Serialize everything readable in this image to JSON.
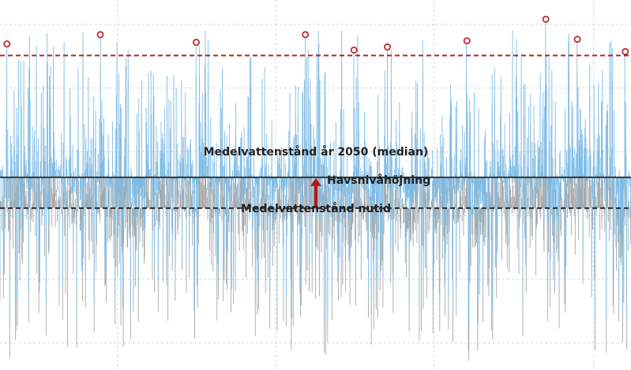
{
  "chart_data": {
    "type": "line",
    "title": "",
    "xlabel": "",
    "ylabel": "",
    "grid": true,
    "legend": "none",
    "ylim": [
      -1.05,
      1.35
    ],
    "series": [
      {
        "name": "",
        "role": "present",
        "color": "#a9a9a9",
        "values": []
      },
      {
        "name": "",
        "role": "future",
        "color": "#7dbde8",
        "values": []
      }
    ],
    "reference_lines": [
      {
        "label": "Medelvattenstånd år 2050 (median)",
        "value": 0.2,
        "style": "solid",
        "color": "#222222"
      },
      {
        "label": "Medelvattenstånd nutid",
        "value": 0.0,
        "style": "dashed",
        "color": "#222222"
      },
      {
        "label": "",
        "value": 0.99,
        "style": "dashed",
        "color": "#b22222"
      }
    ],
    "arrow": {
      "label": "Havsnivåhöjning",
      "from": 0.0,
      "to": 0.2,
      "color": "#b01818"
    },
    "exceedances": [
      {
        "x": 0.011,
        "value": 1.05
      },
      {
        "x": 0.159,
        "value": 1.11
      },
      {
        "x": 0.311,
        "value": 1.06
      },
      {
        "x": 0.484,
        "value": 1.11
      },
      {
        "x": 0.561,
        "value": 1.01
      },
      {
        "x": 0.614,
        "value": 1.03
      },
      {
        "x": 0.74,
        "value": 1.07
      },
      {
        "x": 0.865,
        "value": 1.21
      },
      {
        "x": 0.915,
        "value": 1.08
      },
      {
        "x": 0.991,
        "value": 1.0
      }
    ]
  },
  "labels": {
    "future_mean": "Medelvattenstånd år 2050 (median)",
    "rise": "Havsnivåhöjning",
    "present_mean": "Medelvattenstånd nutid"
  }
}
